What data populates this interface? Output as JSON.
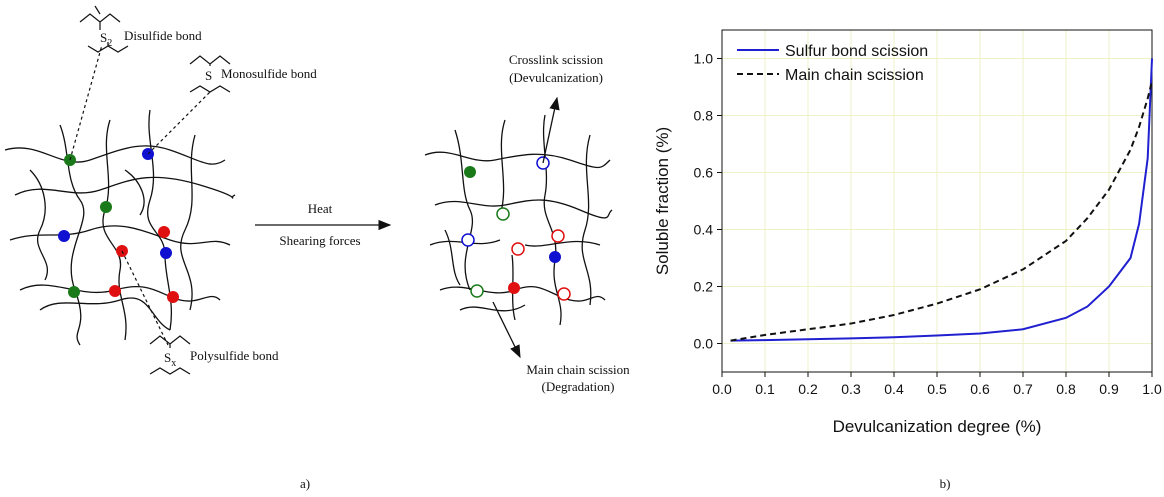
{
  "diagram": {
    "disulfide": {
      "symbol": "S",
      "subscript": "2",
      "label": "Disulfide bond"
    },
    "monosulfide": {
      "symbol": "S",
      "label": "Monosulfide bond"
    },
    "polysulfide": {
      "symbol": "S",
      "subscript": "x",
      "label": "Polysulfide bond"
    },
    "process": {
      "top": "Heat",
      "bottom": "Shearing forces"
    },
    "crosslink": {
      "line1": "Crosslink scission",
      "line2": "(Devulcanization)"
    },
    "mainchain": {
      "line1": "Main chain scission",
      "line2": "(Degradation)"
    }
  },
  "captions": [
    "a)",
    "b)"
  ],
  "chart_data": {
    "type": "line",
    "x_label": "Devulcanization degree (%)",
    "y_label": "Soluble fraction (%)",
    "x": [
      0.02,
      0.1,
      0.2,
      0.3,
      0.4,
      0.5,
      0.6,
      0.7,
      0.8,
      0.85,
      0.9,
      0.95,
      0.97,
      0.99,
      1.0
    ],
    "series": [
      {
        "name": "Sulfur bond scission",
        "color": "#2020d0",
        "style": "solid",
        "values": [
          0.01,
          0.012,
          0.015,
          0.018,
          0.022,
          0.028,
          0.035,
          0.05,
          0.09,
          0.13,
          0.2,
          0.3,
          0.42,
          0.65,
          1.0
        ]
      },
      {
        "name": "Main chain scission",
        "color": "#111111",
        "style": "dashed",
        "values": [
          0.01,
          0.03,
          0.05,
          0.07,
          0.1,
          0.14,
          0.19,
          0.26,
          0.36,
          0.44,
          0.54,
          0.68,
          0.76,
          0.86,
          0.92
        ]
      }
    ],
    "xlim": [
      0,
      1
    ],
    "ylim": [
      -0.1,
      1.1
    ],
    "xticks": [
      {
        "value": 0,
        "label": "0.0"
      },
      0.1,
      0.2,
      0.3,
      0.4,
      0.5,
      0.6,
      0.7,
      0.8,
      0.9,
      {
        "value": 1,
        "label": "1.0"
      }
    ],
    "yticks": [
      {
        "value": 0,
        "label": "0.0"
      },
      0.2,
      0.4,
      0.6,
      0.8,
      {
        "value": 1,
        "label": "1.0"
      }
    ],
    "grid": true,
    "legend": "upper-left"
  }
}
